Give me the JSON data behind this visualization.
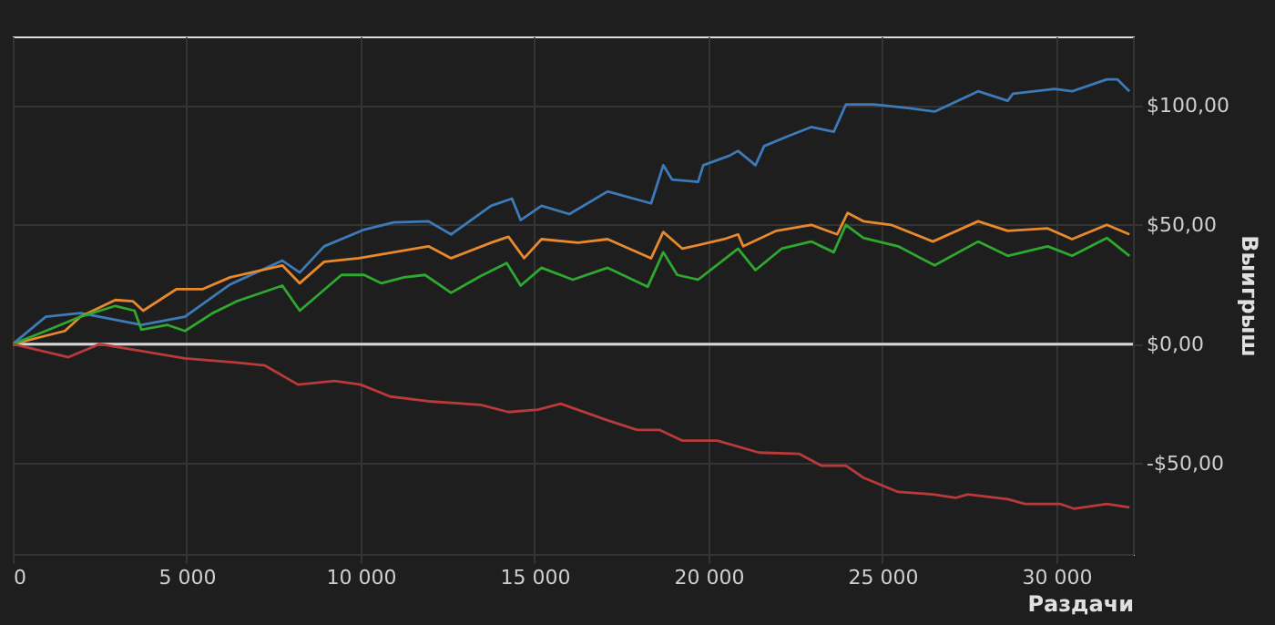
{
  "chart_data": {
    "type": "line",
    "xlabel": "Раздачи",
    "ylabel": "Выигрыш",
    "xlim": [
      0,
      32200
    ],
    "ylim": [
      -88,
      129
    ],
    "xticks": [
      0,
      {
        "value": 5000,
        "label": "5 000"
      },
      {
        "value": 10000,
        "label": "10 000"
      },
      {
        "value": 15000,
        "label": "15 000"
      },
      {
        "value": 20000,
        "label": "20 000"
      },
      {
        "value": 25000,
        "label": "25 000"
      },
      {
        "value": 30000,
        "label": "30 000"
      }
    ],
    "yticks": [
      {
        "value": -50,
        "label": "-$50,00"
      },
      {
        "value": 0,
        "label": "$0,00"
      },
      {
        "value": 50,
        "label": "$50,00"
      },
      {
        "value": 100,
        "label": "$100,00"
      }
    ],
    "grid": true,
    "line_style": "solid",
    "ref_lines": [
      {
        "axis": "y",
        "value": 0,
        "color": "#d8d8d8"
      }
    ],
    "series": [
      {
        "color": "#3d7ab8",
        "x": [
          0,
          950,
          1950,
          3700,
          4950,
          6250,
          7750,
          8250,
          8950,
          10100,
          10950,
          11950,
          12600,
          13750,
          14350,
          14600,
          15200,
          16000,
          17100,
          18350,
          18700,
          18950,
          19700,
          19850,
          20600,
          20850,
          21350,
          21600,
          22250,
          22950,
          23600,
          23950,
          24750,
          25750,
          26500,
          26950,
          27750,
          28600,
          28750,
          29950,
          30450,
          31450,
          31750,
          32100
        ],
        "values": [
          0,
          11.5,
          13,
          8,
          11.5,
          25,
          35,
          30,
          41,
          48,
          51,
          51.5,
          46,
          58,
          61,
          52,
          58,
          54.5,
          64,
          59,
          75,
          69,
          68,
          75,
          79,
          81,
          75,
          83,
          87,
          91,
          89,
          100.5,
          100.5,
          99,
          97.5,
          100.5,
          106,
          102,
          105,
          107,
          106,
          111,
          111,
          106
        ]
      },
      {
        "color": "#e8892e",
        "x": [
          0,
          1500,
          1950,
          2950,
          3450,
          3750,
          4700,
          5450,
          6250,
          7750,
          8250,
          8950,
          9950,
          10950,
          11950,
          12600,
          13750,
          14250,
          14700,
          15200,
          16250,
          17100,
          18350,
          18700,
          19250,
          20450,
          20850,
          21000,
          21950,
          22950,
          23700,
          24000,
          24450,
          25250,
          26450,
          27750,
          28600,
          29750,
          30450,
          31450,
          32100
        ],
        "values": [
          0,
          5.5,
          11.5,
          18.5,
          18,
          14,
          23,
          23,
          28,
          33,
          25.5,
          34.5,
          36,
          38.5,
          41,
          36,
          42.5,
          45,
          36,
          44,
          42.5,
          44,
          36,
          47,
          40,
          44,
          46,
          41,
          47.5,
          50,
          46,
          55,
          51.5,
          50,
          43,
          51.5,
          47.5,
          48.5,
          44,
          50,
          46
        ]
      },
      {
        "color": "#2ea82e",
        "x": [
          0,
          950,
          1950,
          2950,
          3500,
          3700,
          4450,
          4950,
          5750,
          6450,
          7750,
          8250,
          9450,
          10100,
          10600,
          11250,
          11850,
          12600,
          13450,
          14200,
          14600,
          15200,
          16100,
          17100,
          18250,
          18700,
          19100,
          19700,
          20850,
          21350,
          22100,
          22950,
          23600,
          23950,
          24450,
          25450,
          26500,
          27750,
          28600,
          29750,
          30450,
          31450,
          32100
        ],
        "values": [
          0,
          5.5,
          11.5,
          16,
          14,
          6,
          8,
          5.5,
          13,
          18,
          24.5,
          14,
          29,
          29,
          25.5,
          28,
          29,
          21.5,
          28.5,
          34,
          24.5,
          32,
          27,
          32,
          24,
          38.5,
          29,
          27,
          40,
          31,
          40,
          43,
          38.5,
          50,
          44.5,
          41,
          33,
          43,
          37,
          41,
          37,
          44.5,
          37
        ]
      },
      {
        "color": "#b83a3a",
        "x": [
          0,
          1600,
          2500,
          3750,
          4950,
          6250,
          7250,
          8200,
          9250,
          10000,
          10850,
          11950,
          13450,
          14250,
          15100,
          15750,
          17100,
          17950,
          18600,
          19250,
          20250,
          21450,
          22600,
          23250,
          23950,
          24450,
          25450,
          26450,
          27100,
          27450,
          28600,
          29100,
          30100,
          30500,
          31450,
          32100
        ],
        "values": [
          0,
          -5.5,
          0,
          -3,
          -6,
          -7.5,
          -9,
          -17,
          -15.5,
          -17,
          -22,
          -24,
          -25.5,
          -28.5,
          -27.5,
          -25,
          -32,
          -36,
          -36,
          -40.5,
          -40.5,
          -45.5,
          -46,
          -51,
          -51,
          -56,
          -62,
          -63,
          -64.5,
          -63,
          -65,
          -67,
          -67,
          -69,
          -67,
          -68.5
        ]
      }
    ]
  }
}
